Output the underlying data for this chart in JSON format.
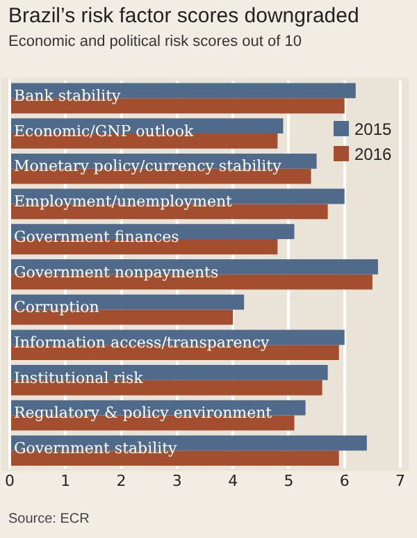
{
  "chart_data": {
    "type": "bar",
    "orientation": "horizontal",
    "title": "Brazil’s risk factor scores downgraded",
    "subtitle": "Economic and political risk scores out of 10",
    "categories": [
      "Bank stability",
      "Economic/GNP outlook",
      "Monetary policy/currency stability",
      "Employment/unemployment",
      "Government finances",
      "Government nonpayments",
      "Corruption",
      "Information access/transparency",
      "Institutional risk",
      "Regulatory & policy environment",
      "Government stability"
    ],
    "series": [
      {
        "name": "2015",
        "color": "#4f6a8a",
        "values": [
          6.2,
          4.9,
          5.5,
          6.0,
          5.1,
          6.6,
          4.2,
          6.0,
          5.7,
          5.3,
          6.4
        ]
      },
      {
        "name": "2016",
        "color": "#a24e2f",
        "values": [
          6.0,
          4.8,
          5.4,
          5.7,
          4.8,
          6.5,
          4.0,
          5.9,
          5.6,
          5.1,
          5.9
        ]
      }
    ],
    "xlim": [
      0,
      7
    ],
    "xticks": [
      0,
      1,
      2,
      3,
      4,
      5,
      6,
      7
    ],
    "grid": "x",
    "legend": "right",
    "annotations": [
      "Source: ECR"
    ]
  }
}
